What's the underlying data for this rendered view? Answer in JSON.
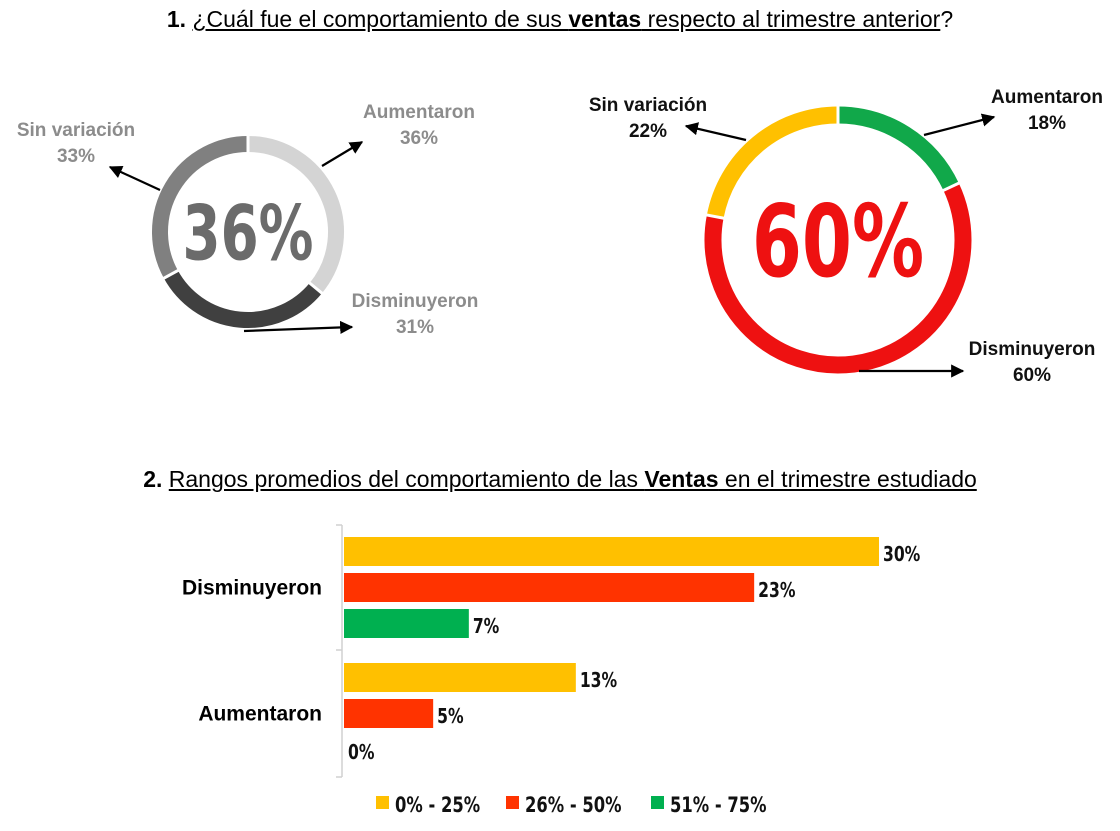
{
  "question1": {
    "number": "1.",
    "text_pre": "¿Cuál fue el comportamiento de sus ",
    "text_bold": "ventas",
    "text_post": " respecto al trimestre anterior",
    "question_mark": "?"
  },
  "question2": {
    "number": "2.",
    "text_pre": "Rangos promedios del comportamiento de las ",
    "text_bold": "Ventas",
    "text_post": " en el trimestre estudiado"
  },
  "chart_data": [
    {
      "type": "pie",
      "variant": "donut",
      "center_label": "36%",
      "center_color": "#6b6b6b",
      "slices": [
        {
          "label": "Aumentaron",
          "value": 36,
          "value_label": "36%",
          "color": "#d4d4d4"
        },
        {
          "label": "Disminuyeron",
          "value": 31,
          "value_label": "31%",
          "color": "#404040"
        },
        {
          "label": "Sin variación",
          "value": 33,
          "value_label": "33%",
          "color": "#808080"
        }
      ],
      "label_color": "#8c8c8c"
    },
    {
      "type": "pie",
      "variant": "donut",
      "center_label": "60%",
      "center_color": "#ee1111",
      "slices": [
        {
          "label": "Aumentaron",
          "value": 18,
          "value_label": "18%",
          "color": "#11a84a"
        },
        {
          "label": "Disminuyeron",
          "value": 60,
          "value_label": "60%",
          "color": "#ee1111"
        },
        {
          "label": "Sin variación",
          "value": 22,
          "value_label": "22%",
          "color": "#ffc000"
        }
      ],
      "label_color": "#111111"
    },
    {
      "type": "bar",
      "orientation": "horizontal",
      "categories": [
        "Disminuyeron",
        "Aumentaron"
      ],
      "series": [
        {
          "name": "0% - 25%",
          "color": "#ffc000",
          "values": [
            30,
            13
          ],
          "labels": [
            "30%",
            "13%"
          ]
        },
        {
          "name": "26% - 50%",
          "color": "#ff3300",
          "values": [
            23,
            5
          ],
          "labels": [
            "23%",
            "5%"
          ]
        },
        {
          "name": "51% - 75%",
          "color": "#00b050",
          "values": [
            7,
            0
          ],
          "labels": [
            "7%",
            "0%"
          ]
        }
      ],
      "xlim": [
        0,
        30
      ],
      "legend_position": "bottom"
    }
  ]
}
